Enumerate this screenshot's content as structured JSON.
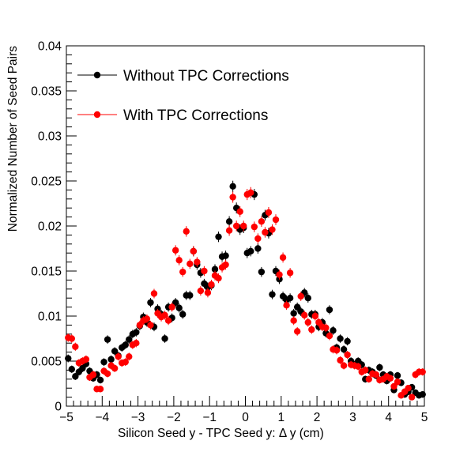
{
  "chart_data": {
    "type": "scatter",
    "title": "",
    "xlabel": "Silicon Seed y - TPC Seed y:   Δ y (cm)",
    "ylabel": "Normalized Number of Seed Pairs",
    "xlim": [
      -5,
      5
    ],
    "ylim": [
      0,
      0.04
    ],
    "x_ticks": [
      -5,
      -4,
      -3,
      -2,
      -1,
      0,
      1,
      2,
      3,
      4,
      5
    ],
    "x_tick_labels": [
      "−5",
      "−4",
      "−3",
      "−2",
      "−1",
      "0",
      "1",
      "2",
      "3",
      "4",
      "5"
    ],
    "y_ticks": [
      0,
      0.005,
      0.01,
      0.015,
      0.02,
      0.025,
      0.03,
      0.035,
      0.04
    ],
    "y_tick_labels": [
      "0",
      "0.005",
      "0.01",
      "0.015",
      "0.02",
      "0.025",
      "0.03",
      "0.035",
      "0.04"
    ],
    "grid": false,
    "legend_position": "top-left",
    "series": [
      {
        "name": "Without TPC Corrections",
        "color": "#000000",
        "x": [
          -4.95,
          -4.85,
          -4.75,
          -4.65,
          -4.55,
          -4.45,
          -4.35,
          -4.25,
          -4.15,
          -4.05,
          -3.95,
          -3.85,
          -3.75,
          -3.65,
          -3.55,
          -3.45,
          -3.35,
          -3.25,
          -3.15,
          -3.05,
          -2.95,
          -2.85,
          -2.75,
          -2.65,
          -2.55,
          -2.45,
          -2.35,
          -2.25,
          -2.15,
          -2.05,
          -1.95,
          -1.85,
          -1.75,
          -1.65,
          -1.55,
          -1.45,
          -1.35,
          -1.25,
          -1.15,
          -1.05,
          -0.95,
          -0.85,
          -0.75,
          -0.65,
          -0.55,
          -0.45,
          -0.35,
          -0.25,
          -0.15,
          -0.05,
          0.05,
          0.15,
          0.25,
          0.35,
          0.45,
          0.55,
          0.65,
          0.75,
          0.85,
          0.95,
          1.05,
          1.15,
          1.25,
          1.35,
          1.45,
          1.55,
          1.65,
          1.75,
          1.85,
          1.95,
          2.05,
          2.15,
          2.25,
          2.35,
          2.45,
          2.55,
          2.65,
          2.75,
          2.85,
          2.95,
          3.05,
          3.15,
          3.25,
          3.35,
          3.45,
          3.55,
          3.65,
          3.75,
          3.85,
          3.95,
          4.05,
          4.15,
          4.25,
          4.35,
          4.45,
          4.55,
          4.65,
          4.75,
          4.85,
          4.95
        ],
        "y": [
          0.0053,
          0.0041,
          0.0033,
          0.0038,
          0.0042,
          0.0047,
          0.0039,
          0.0031,
          0.0035,
          0.0029,
          0.0049,
          0.0074,
          0.0052,
          0.0061,
          0.0056,
          0.0065,
          0.0068,
          0.0074,
          0.008,
          0.0082,
          0.0089,
          0.0099,
          0.0093,
          0.0115,
          0.0088,
          0.0108,
          0.0102,
          0.0075,
          0.011,
          0.0098,
          0.0115,
          0.0109,
          0.0102,
          0.0123,
          0.0123,
          0.0172,
          0.0157,
          0.0148,
          0.0136,
          0.0132,
          0.0134,
          0.0152,
          0.0188,
          0.0166,
          0.0167,
          0.0205,
          0.0244,
          0.022,
          0.0196,
          0.0198,
          0.017,
          0.0172,
          0.0235,
          0.0175,
          0.0149,
          0.0212,
          0.0192,
          0.0124,
          0.015,
          0.0141,
          0.0122,
          0.0118,
          0.012,
          0.0103,
          0.011,
          0.0105,
          0.0126,
          0.012,
          0.0102,
          0.0102,
          0.0088,
          0.0093,
          0.0081,
          0.0107,
          0.0084,
          0.0065,
          0.0075,
          0.0063,
          0.0072,
          0.005,
          0.0046,
          0.005,
          0.0046,
          0.003,
          0.004,
          0.0038,
          0.0034,
          0.0043,
          0.0035,
          0.0028,
          0.0035,
          0.0018,
          0.0034,
          0.0026,
          0.0013,
          0.0016,
          0.0021,
          0.0015,
          0.0012,
          0.0013
        ]
      },
      {
        "name": "With TPC Corrections",
        "color": "#ff0000",
        "x": [
          -4.95,
          -4.85,
          -4.75,
          -4.65,
          -4.55,
          -4.45,
          -4.35,
          -4.25,
          -4.15,
          -4.05,
          -3.95,
          -3.85,
          -3.75,
          -3.65,
          -3.55,
          -3.45,
          -3.35,
          -3.25,
          -3.15,
          -3.05,
          -2.95,
          -2.85,
          -2.75,
          -2.65,
          -2.55,
          -2.45,
          -2.35,
          -2.25,
          -2.15,
          -2.05,
          -1.95,
          -1.85,
          -1.75,
          -1.65,
          -1.55,
          -1.45,
          -1.35,
          -1.25,
          -1.15,
          -1.05,
          -0.95,
          -0.85,
          -0.75,
          -0.65,
          -0.55,
          -0.45,
          -0.35,
          -0.25,
          -0.15,
          -0.05,
          0.05,
          0.15,
          0.25,
          0.35,
          0.45,
          0.55,
          0.65,
          0.75,
          0.85,
          0.95,
          1.05,
          1.15,
          1.25,
          1.35,
          1.45,
          1.55,
          1.65,
          1.75,
          1.85,
          1.95,
          2.05,
          2.15,
          2.25,
          2.35,
          2.45,
          2.55,
          2.65,
          2.75,
          2.85,
          2.95,
          3.05,
          3.15,
          3.25,
          3.35,
          3.45,
          3.55,
          3.65,
          3.75,
          3.85,
          3.95,
          4.05,
          4.15,
          4.25,
          4.35,
          4.45,
          4.55,
          4.65,
          4.75,
          4.85,
          4.95
        ],
        "y": [
          0.0076,
          0.0075,
          0.0066,
          0.0048,
          0.005,
          0.0052,
          0.0032,
          0.0035,
          0.0019,
          0.0019,
          0.0039,
          0.0036,
          0.0045,
          0.0042,
          0.0055,
          0.0048,
          0.0049,
          0.0055,
          0.0068,
          0.007,
          0.009,
          0.0095,
          0.0097,
          0.009,
          0.0125,
          0.0103,
          0.0099,
          0.0101,
          0.0095,
          0.011,
          0.0173,
          0.0162,
          0.0149,
          0.0194,
          0.0158,
          0.0172,
          0.016,
          0.0128,
          0.015,
          0.0126,
          0.0135,
          0.0145,
          0.0142,
          0.0154,
          0.0157,
          0.0195,
          0.0232,
          0.02,
          0.0216,
          0.02,
          0.0235,
          0.0237,
          0.0199,
          0.0186,
          0.0205,
          0.0193,
          0.0215,
          0.0196,
          0.0207,
          0.0146,
          0.0165,
          0.0112,
          0.0148,
          0.0095,
          0.0083,
          0.0122,
          0.0101,
          0.0093,
          0.0085,
          0.01,
          0.0093,
          0.0088,
          0.0087,
          0.0078,
          0.0063,
          0.0062,
          0.0051,
          0.0045,
          0.0057,
          0.0046,
          0.0045,
          0.0044,
          0.0038,
          0.004,
          0.003,
          0.0036,
          0.0035,
          0.0029,
          0.003,
          0.0033,
          0.0031,
          0.0022,
          0.0027,
          0.0012,
          0.0016,
          0.002,
          0.001,
          0.0035,
          0.0038,
          0.0038
        ]
      }
    ]
  }
}
